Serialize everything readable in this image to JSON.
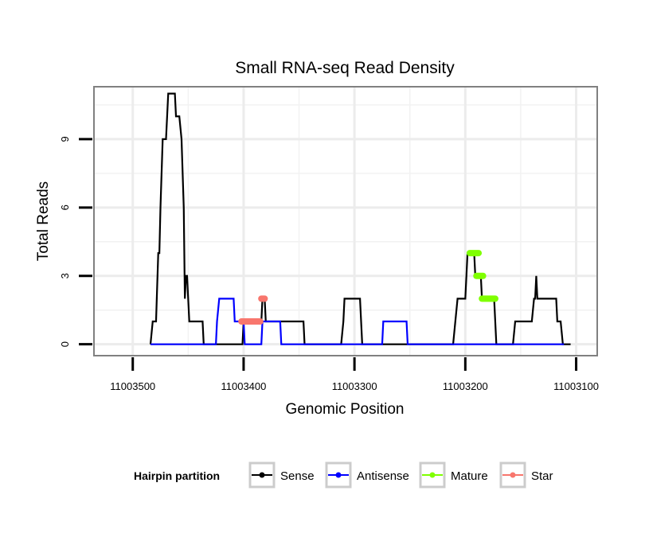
{
  "chart_data": {
    "type": "line",
    "title": "Small RNA-seq Read Density",
    "xlabel": "Genomic Position",
    "ylabel": "Total Reads",
    "xlim": [
      11003535,
      11003081
    ],
    "ylim": [
      -0.5,
      11.3
    ],
    "x_reversed": true,
    "x_ticks": [
      11003500,
      11003400,
      11003300,
      11003200,
      11003100
    ],
    "x_tick_labels": [
      "11003500",
      "11003400",
      "11003300",
      "11003200",
      "11003100"
    ],
    "y_ticks": [
      0,
      3,
      6,
      9
    ],
    "y_tick_labels": [
      "0",
      "3",
      "6",
      "9"
    ],
    "grid": true,
    "legend": {
      "title": "Hairpin partition",
      "placement": "bottom",
      "entries": [
        "Sense",
        "Antisense",
        "Mature",
        "Star"
      ]
    },
    "series": [
      {
        "name": "Sense",
        "color": "#000000",
        "style": "line",
        "points": [
          [
            11003484,
            0
          ],
          [
            11003482,
            1
          ],
          [
            11003479,
            1
          ],
          [
            11003477,
            4
          ],
          [
            11003476,
            4
          ],
          [
            11003475,
            6
          ],
          [
            11003473,
            9
          ],
          [
            11003470,
            9
          ],
          [
            11003468,
            11
          ],
          [
            11003462,
            11
          ],
          [
            11003461,
            10
          ],
          [
            11003458,
            10
          ],
          [
            11003456,
            9
          ],
          [
            11003454,
            6
          ],
          [
            11003453,
            2
          ],
          [
            11003452,
            3
          ],
          [
            11003451,
            3
          ],
          [
            11003449,
            1
          ],
          [
            11003437,
            1
          ],
          [
            11003436,
            0
          ],
          [
            11003401,
            0
          ],
          [
            11003400,
            1
          ],
          [
            11003384,
            1
          ],
          [
            11003383,
            2
          ],
          [
            11003381,
            2
          ],
          [
            11003380,
            1
          ],
          [
            11003358,
            1
          ],
          [
            11003357,
            1
          ],
          [
            11003346,
            1
          ],
          [
            11003345,
            0
          ],
          [
            11003312,
            0
          ],
          [
            11003310,
            1
          ],
          [
            11003309,
            2
          ],
          [
            11003302,
            2
          ],
          [
            11003300,
            2
          ],
          [
            11003295,
            2
          ],
          [
            11003293,
            0
          ],
          [
            11003211,
            0
          ],
          [
            11003209,
            1
          ],
          [
            11003207,
            2
          ],
          [
            11003200,
            2
          ],
          [
            11003198,
            4
          ],
          [
            11003192,
            4
          ],
          [
            11003191,
            3
          ],
          [
            11003186,
            3
          ],
          [
            11003185,
            2
          ],
          [
            11003174,
            2
          ],
          [
            11003172,
            0
          ],
          [
            11003157,
            0
          ],
          [
            11003155,
            1
          ],
          [
            11003140,
            1
          ],
          [
            11003138,
            2
          ],
          [
            11003137,
            2
          ],
          [
            11003136,
            3
          ],
          [
            11003135,
            2
          ],
          [
            11003118,
            2
          ],
          [
            11003117,
            1
          ],
          [
            11003114,
            1
          ],
          [
            11003112,
            0
          ],
          [
            11003105,
            0
          ]
        ]
      },
      {
        "name": "Antisense",
        "color": "#0000ff",
        "style": "line",
        "points": [
          [
            11003484,
            0
          ],
          [
            11003425,
            0
          ],
          [
            11003424,
            1
          ],
          [
            11003422,
            2
          ],
          [
            11003409,
            2
          ],
          [
            11003408,
            1
          ],
          [
            11003400,
            1
          ],
          [
            11003399,
            0
          ],
          [
            11003384,
            0
          ],
          [
            11003383,
            1
          ],
          [
            11003367,
            1
          ],
          [
            11003366,
            0
          ],
          [
            11003320,
            0
          ],
          [
            11003320,
            0
          ],
          [
            11003275,
            0
          ],
          [
            11003274,
            1
          ],
          [
            11003253,
            1
          ],
          [
            11003252,
            0
          ],
          [
            11003111,
            0
          ]
        ]
      },
      {
        "name": "Mature",
        "color": "#7fff00",
        "style": "segments",
        "segments": [
          [
            [
              11003196,
              4
            ],
            [
              11003188,
              4
            ]
          ],
          [
            [
              11003190,
              3
            ],
            [
              11003184,
              3
            ]
          ],
          [
            [
              11003185,
              2
            ],
            [
              11003173,
              2
            ]
          ]
        ]
      },
      {
        "name": "Star",
        "color": "#f8766d",
        "style": "segments",
        "segments": [
          [
            [
              11003402,
              1
            ],
            [
              11003385,
              1
            ]
          ],
          [
            [
              11003384,
              2
            ],
            [
              11003381,
              2
            ]
          ]
        ]
      }
    ]
  }
}
